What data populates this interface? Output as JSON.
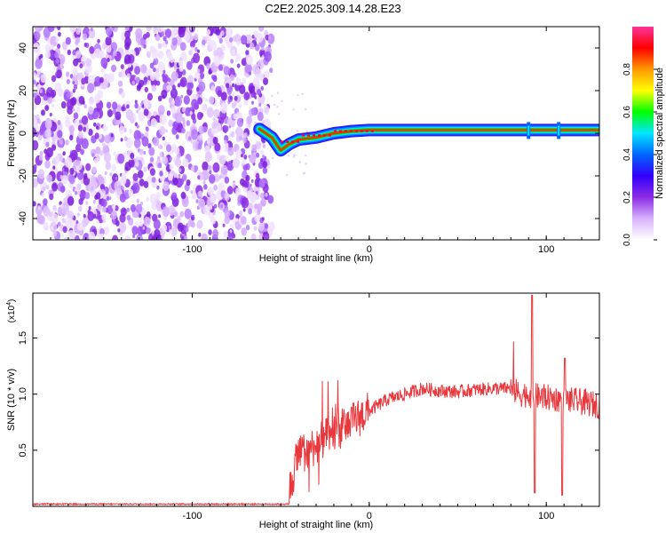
{
  "title": "C2E2.2025.309.14.28.E23",
  "chart_data": [
    {
      "type": "heatmap",
      "xlabel": "Height of straight line (km)",
      "ylabel": "Frequency (Hz)",
      "xlim": [
        -190,
        130
      ],
      "ylim": [
        -50,
        50
      ],
      "x_ticks": [
        -100,
        0,
        100
      ],
      "y_ticks": [
        -40,
        -20,
        0,
        20,
        40
      ],
      "colorbar": {
        "label": "Normalized spectral amplitude",
        "range": [
          0,
          1
        ],
        "ticks": [
          "0.0",
          "0.2",
          "0.4",
          "0.6",
          "0.8"
        ],
        "colors": [
          "#ffffff",
          "#d9b3ff",
          "#8a2be2",
          "#3300ff",
          "#0066ff",
          "#00e5ff",
          "#00ff00",
          "#ffff00",
          "#ff9900",
          "#ff0000",
          "#ff3399"
        ]
      },
      "noise_region_x": [
        -190,
        -55
      ],
      "signal_track": [
        {
          "x": -62,
          "y": 2
        },
        {
          "x": -55,
          "y": -2
        },
        {
          "x": -50,
          "y": -8
        },
        {
          "x": -45,
          "y": -5
        },
        {
          "x": -40,
          "y": -3
        },
        {
          "x": -30,
          "y": -2
        },
        {
          "x": -20,
          "y": 0
        },
        {
          "x": -10,
          "y": 1
        },
        {
          "x": 0,
          "y": 1.5
        },
        {
          "x": 20,
          "y": 1.5
        },
        {
          "x": 50,
          "y": 1.5
        },
        {
          "x": 80,
          "y": 1.5
        },
        {
          "x": 90,
          "y": 1.5
        },
        {
          "x": 105,
          "y": 1.5
        },
        {
          "x": 130,
          "y": 1.5
        }
      ]
    },
    {
      "type": "line",
      "xlabel": "Height of straight line (km)",
      "ylabel": "SNR (10 * v/v)",
      "y_multiplier": "(x10",
      "y_multiplier_exp": "4",
      "y_multiplier_close": ")",
      "xlim": [
        -190,
        130
      ],
      "ylim": [
        0,
        1.9
      ],
      "x_ticks": [
        -100,
        0,
        100
      ],
      "y_ticks": [
        "0.5",
        "1.0",
        "1.5"
      ],
      "color": "#e8383d",
      "series": [
        {
          "x": [
            -190,
            -60,
            -45,
            -40,
            -35,
            -30,
            -25,
            -20,
            -15,
            -10,
            -5,
            0,
            5,
            10,
            20,
            30,
            40,
            50,
            60,
            70,
            80,
            85,
            90,
            95,
            100,
            110,
            120,
            130
          ],
          "values": [
            0.02,
            0.02,
            0.15,
            0.45,
            0.5,
            0.55,
            0.6,
            0.65,
            0.7,
            0.75,
            0.8,
            0.85,
            0.9,
            0.95,
            1.0,
            1.05,
            1.03,
            1.02,
            1.04,
            1.05,
            1.05,
            1.0,
            1.0,
            0.98,
            0.97,
            0.95,
            0.93,
            0.9
          ]
        }
      ]
    }
  ]
}
